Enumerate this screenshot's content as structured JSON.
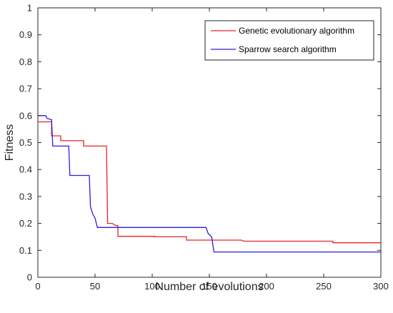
{
  "chart_data": {
    "type": "line",
    "xlabel": "Number of evolutions",
    "ylabel": "Fitness",
    "xlim": [
      0,
      300
    ],
    "ylim": [
      0,
      1
    ],
    "xticks": [
      0,
      50,
      100,
      150,
      200,
      250,
      300
    ],
    "yticks": [
      0,
      0.1,
      0.2,
      0.3,
      0.4,
      0.5,
      0.6,
      0.7,
      0.8,
      0.9,
      1
    ],
    "grid": false,
    "legend_position": "top-right",
    "series": [
      {
        "name": "Genetic evolutionary algorithm",
        "color": "#e8232a",
        "points": [
          [
            0,
            0.577
          ],
          [
            12,
            0.577
          ],
          [
            12,
            0.525
          ],
          [
            20,
            0.525
          ],
          [
            20,
            0.507
          ],
          [
            40,
            0.507
          ],
          [
            40,
            0.487
          ],
          [
            60,
            0.487
          ],
          [
            61,
            0.2
          ],
          [
            65,
            0.2
          ],
          [
            68,
            0.192
          ],
          [
            70,
            0.192
          ],
          [
            70,
            0.152
          ],
          [
            102,
            0.152
          ],
          [
            102,
            0.15
          ],
          [
            130,
            0.15
          ],
          [
            130,
            0.138
          ],
          [
            178,
            0.138
          ],
          [
            180,
            0.134
          ],
          [
            258,
            0.134
          ],
          [
            258,
            0.128
          ],
          [
            300,
            0.128
          ]
        ]
      },
      {
        "name": "Sparrow search algorithm",
        "color": "#2c1ee0",
        "points": [
          [
            0,
            0.6
          ],
          [
            7,
            0.6
          ],
          [
            8,
            0.59
          ],
          [
            12,
            0.585
          ],
          [
            13,
            0.487
          ],
          [
            27,
            0.487
          ],
          [
            28,
            0.378
          ],
          [
            45,
            0.378
          ],
          [
            46,
            0.262
          ],
          [
            48,
            0.235
          ],
          [
            50,
            0.22
          ],
          [
            52,
            0.185
          ],
          [
            147,
            0.185
          ],
          [
            149,
            0.162
          ],
          [
            152,
            0.15
          ],
          [
            154,
            0.094
          ],
          [
            300,
            0.094
          ]
        ]
      }
    ]
  }
}
